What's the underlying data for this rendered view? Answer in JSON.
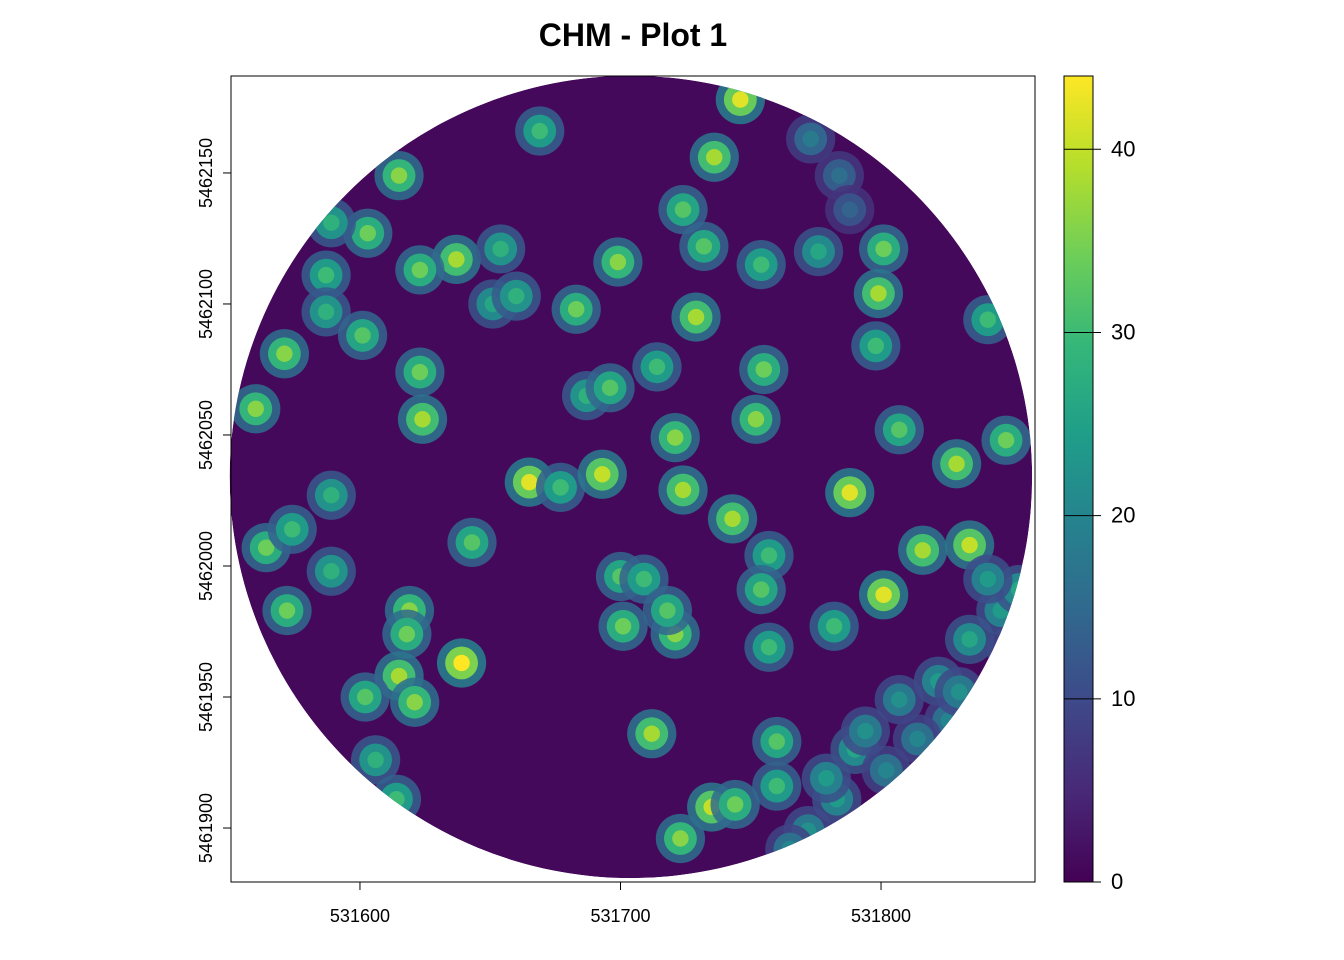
{
  "chart_data": {
    "type": "raster",
    "title": "CHM - Plot 1",
    "xlim": [
      531550.5,
      531859.1
    ],
    "ylim": [
      5461879.4,
      5462187
    ],
    "xticks": [
      531600,
      531700,
      531800
    ],
    "yticks": [
      5461900,
      5461950,
      5462000,
      5462050,
      5462100,
      5462150
    ],
    "zlim": [
      0,
      44
    ],
    "zticks": [
      0,
      10,
      20,
      30,
      40
    ],
    "colors": [
      "#440154",
      "#482878",
      "#3e4989",
      "#31688e",
      "#26828e",
      "#1f9e89",
      "#35b779",
      "#6ece58",
      "#b5de2b",
      "#fde725"
    ],
    "plot_center": [
      531704,
      5462034
    ],
    "plot_radius": 154,
    "background_value": 1,
    "x": [
      531669,
      531736,
      531746,
      531615,
      531603,
      531589,
      531724,
      531637,
      531623,
      531654,
      531699,
      531732,
      531754,
      531776,
      531801,
      531799,
      531587,
      531587,
      531601,
      531571,
      531651,
      531660,
      531683,
      531729,
      531798,
      531841,
      531623,
      531687,
      531696,
      531714,
      531755,
      531560,
      531624,
      531752,
      531807,
      531848,
      531721,
      531829,
      531665,
      531677,
      531693,
      531724,
      531788,
      531589,
      531743,
      531643,
      531564,
      531574,
      531757,
      531816,
      531834,
      531700,
      531709,
      531754,
      531801,
      531589,
      531572,
      531619,
      531618,
      531701,
      531721,
      531718,
      531782,
      531757,
      531639,
      531615,
      531621,
      531602,
      531712,
      531760,
      531606,
      531760,
      531735,
      531744,
      531614,
      531723,
      531846,
      531834,
      531822,
      531807,
      531826,
      531790,
      531783,
      531772,
      531802,
      531850,
      531853,
      531841,
      531794,
      531814,
      531765,
      531779,
      531830,
      531773,
      531784,
      531788
    ],
    "y": [
      5462166,
      5462156,
      5462178,
      5462149,
      5462127,
      5462131,
      5462136,
      5462117,
      5462113,
      5462121,
      5462116,
      5462122,
      5462115,
      5462120,
      5462121,
      5462104,
      5462111,
      5462097,
      5462088,
      5462081,
      5462100,
      5462103,
      5462098,
      5462095,
      5462084,
      5462094,
      5462074,
      5462065,
      5462068,
      5462076,
      5462075,
      5462060,
      5462056,
      5462056,
      5462052,
      5462048,
      5462049,
      5462039,
      5462032,
      5462030,
      5462035,
      5462029,
      5462028,
      5462027,
      5462018,
      5462009,
      5462007,
      5462014,
      5462004,
      5462006,
      5462008,
      5461996,
      5461995,
      5461991,
      5461989,
      5461998,
      5461983,
      5461983,
      5461974,
      5461977,
      5461974,
      5461983,
      5461977,
      5461969,
      5461963,
      5461958,
      5461948,
      5461950,
      5461936,
      5461933,
      5461926,
      5461916,
      5461908,
      5461909,
      5461911,
      5461896,
      5461983,
      5461972,
      5461956,
      5461949,
      5461941,
      5461930,
      5461911,
      5461899,
      5461922,
      5461968,
      5461991,
      5461995,
      5461937,
      5461934,
      5461892,
      5461919,
      5461952,
      5462163,
      5462149,
      5462136
    ],
    "values": [
      30,
      38,
      42,
      36,
      34,
      28,
      32,
      38,
      34,
      28,
      36,
      32,
      30,
      26,
      34,
      38,
      30,
      28,
      32,
      36,
      26,
      28,
      34,
      38,
      30,
      30,
      34,
      28,
      32,
      30,
      34,
      36,
      38,
      36,
      32,
      34,
      36,
      38,
      42,
      30,
      40,
      38,
      42,
      28,
      38,
      32,
      34,
      30,
      30,
      38,
      40,
      32,
      30,
      32,
      42,
      28,
      34,
      36,
      34,
      34,
      36,
      32,
      30,
      30,
      44,
      38,
      36,
      32,
      38,
      32,
      28,
      30,
      40,
      34,
      30,
      36,
      24,
      26,
      24,
      22,
      20,
      26,
      24,
      22,
      20,
      22,
      26,
      24,
      22,
      20,
      20,
      24,
      22,
      18,
      16,
      14
    ]
  }
}
